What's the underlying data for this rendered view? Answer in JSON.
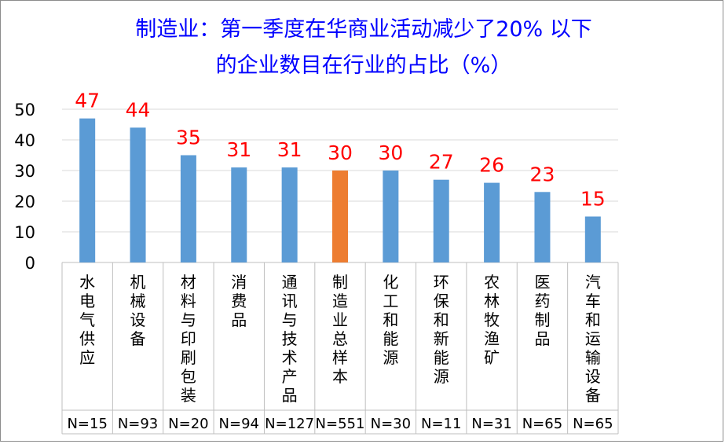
{
  "chart_data": {
    "type": "bar",
    "title_lines": [
      "制造业：第一季度在华商业活动减少了20% 以下",
      "的企业数目在行业的占比（%）"
    ],
    "categories": [
      "水电气供应",
      "机械设备",
      "材料与印刷包装",
      "消费品",
      "通讯与技术产品",
      "制造业总样本",
      "化工和能源",
      "环保和新能源",
      "农林牧渔矿",
      "医药制品",
      "汽车和运输设备"
    ],
    "sample_sizes": [
      "N=15",
      "N=93",
      "N=20",
      "N=94",
      "N=127",
      "N=551",
      "N=30",
      "N=11",
      "N=31",
      "N=65",
      "N=65"
    ],
    "values": [
      47,
      44,
      35,
      31,
      31,
      30,
      30,
      27,
      26,
      23,
      15
    ],
    "highlight_index": 5,
    "ylim": [
      0,
      50
    ],
    "yticks": [
      "0",
      "10",
      "20",
      "30",
      "40",
      "50"
    ],
    "grid": true,
    "colors": {
      "bar": "#5b9bd5",
      "highlight": "#ed7d31",
      "data_label": "#ff0000",
      "title": "#0000ff",
      "grid": "#d9d9d9",
      "table_line": "#bfbfbf"
    }
  }
}
